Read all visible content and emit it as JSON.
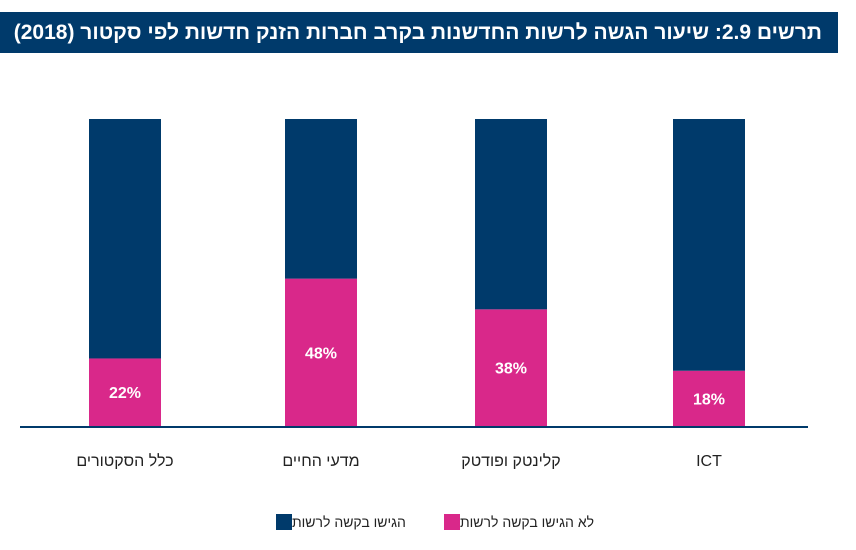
{
  "chart_data": {
    "type": "bar",
    "stacked": true,
    "title": "תרשים 2.9: שיעור הגשה לרשות החדשנות בקרב חברות הזנק חדשות לפי סקטור (2018)",
    "categories": [
      "כלל הסקטורים",
      "מדעי החיים",
      "קלינטק ופודטק",
      "ICT"
    ],
    "series": [
      {
        "name": "לא הגישו בקשה לרשות",
        "values": [
          22,
          48,
          38,
          18
        ],
        "color": "#d9288a",
        "labels": [
          "22%",
          "48%",
          "38%",
          "18%"
        ]
      },
      {
        "name": "הגישו בקשה לרשות",
        "values": [
          78,
          52,
          62,
          82
        ],
        "color": "#003a6b"
      }
    ],
    "ylim": [
      0,
      100
    ],
    "grid": false,
    "legend_position": "bottom"
  }
}
